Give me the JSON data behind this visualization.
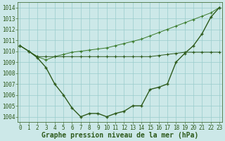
{
  "background_color": "#cce8e8",
  "grid_color": "#99cccc",
  "line_color_dark": "#2d5a1b",
  "line_color_light": "#3a7a2a",
  "title": "Graphe pression niveau de la mer (hPa)",
  "hours": [
    0,
    1,
    2,
    3,
    4,
    5,
    6,
    7,
    8,
    9,
    10,
    11,
    12,
    13,
    14,
    15,
    16,
    17,
    18,
    19,
    20,
    21,
    22,
    23
  ],
  "series_main": [
    1010.5,
    1010.0,
    1009.4,
    1008.5,
    1007.0,
    1006.0,
    1004.8,
    1004.0,
    1004.3,
    1004.3,
    1004.0,
    1004.3,
    1004.5,
    1005.0,
    1005.0,
    1006.5,
    1006.7,
    1007.0,
    1009.0,
    1009.8,
    1010.5,
    1011.6,
    1013.1,
    1014.0
  ],
  "series_flat": [
    1010.5,
    1010.0,
    1009.5,
    1009.5,
    1009.5,
    1009.5,
    1009.5,
    1009.5,
    1009.5,
    1009.5,
    1009.5,
    1009.5,
    1009.5,
    1009.5,
    1009.5,
    1009.5,
    1009.6,
    1009.7,
    1009.8,
    1009.9,
    1009.9,
    1009.9,
    1009.9,
    1009.9
  ],
  "series_rise": [
    1010.5,
    1010.0,
    1009.5,
    1009.2,
    1009.5,
    1009.7,
    1009.9,
    1010.0,
    1010.1,
    1010.2,
    1010.3,
    1010.5,
    1010.7,
    1010.9,
    1011.1,
    1011.4,
    1011.7,
    1012.0,
    1012.3,
    1012.6,
    1012.9,
    1013.2,
    1013.5,
    1014.0
  ],
  "ylim_min": 1003.5,
  "ylim_max": 1014.5,
  "ytick_labels": [
    "1004",
    "1005",
    "1006",
    "1007",
    "1008",
    "1009",
    "1010",
    "1011",
    "1012",
    "1013",
    "1014"
  ],
  "ytick_values": [
    1004,
    1005,
    1006,
    1007,
    1008,
    1009,
    1010,
    1011,
    1012,
    1013,
    1014
  ],
  "title_fontsize": 7,
  "tick_fontsize": 5.5
}
